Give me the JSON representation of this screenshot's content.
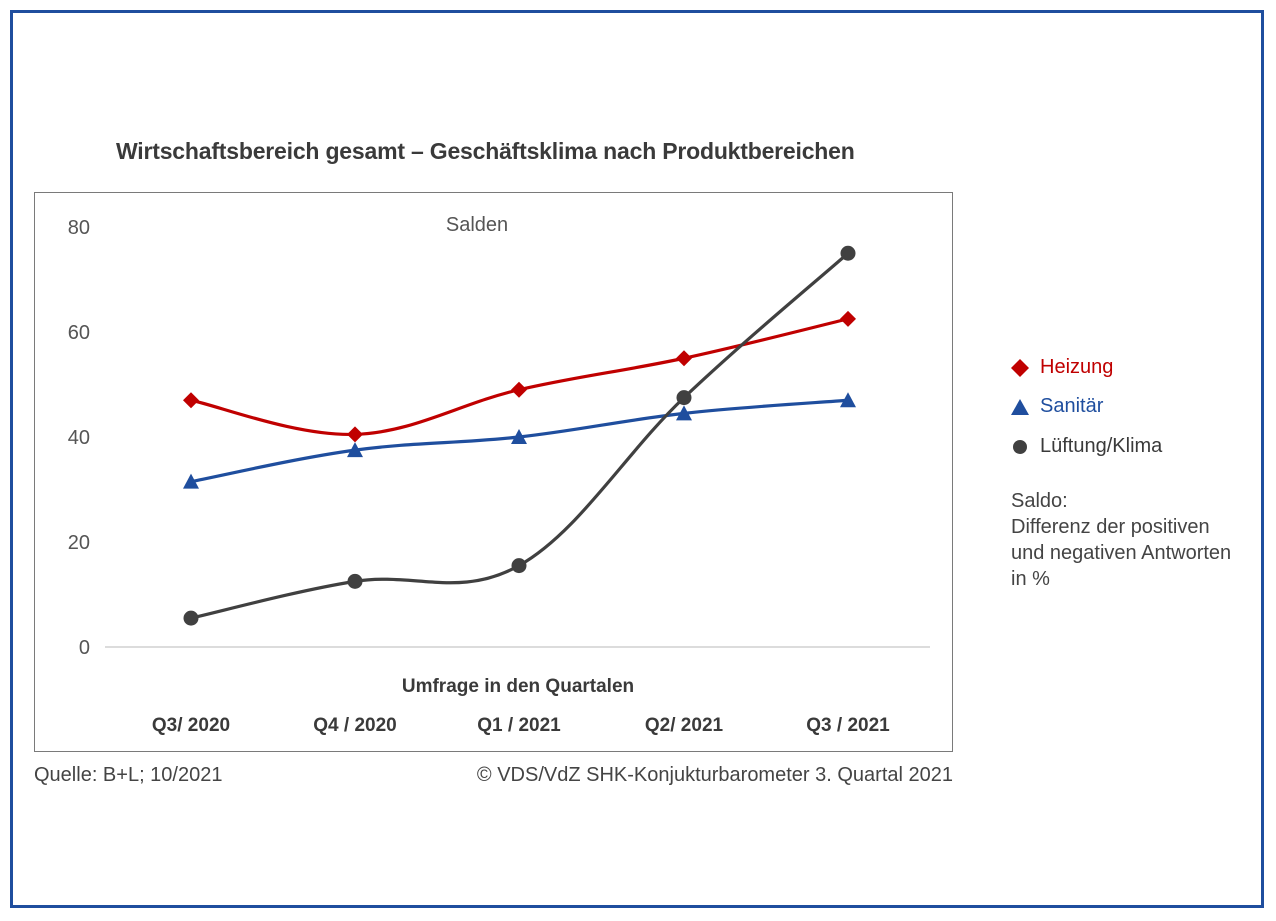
{
  "chart_data": {
    "type": "line",
    "title": "Wirtschaftsbereich gesamt – Geschäftsklima nach Produktbereichen",
    "subtitle": "Salden",
    "xlabel": "Umfrage in den Quartalen",
    "ylabel": "",
    "categories": [
      "Q3/ 2020",
      "Q4 / 2020",
      "Q1 / 2021",
      "Q2/ 2021",
      "Q3 / 2021"
    ],
    "ylim": [
      0,
      80
    ],
    "yticks": [
      "0",
      "20",
      "40",
      "60",
      "80"
    ],
    "grid": false,
    "legend_position": "right",
    "series": [
      {
        "name": "Heizung",
        "values": [
          47,
          40.5,
          49,
          55,
          62.5
        ],
        "color": "#c00000",
        "marker": "diamond"
      },
      {
        "name": "Sanitär",
        "values": [
          31.5,
          37.5,
          40,
          44.5,
          47
        ],
        "color": "#1f4e9e",
        "marker": "triangle"
      },
      {
        "name": "Lüftung/Klima",
        "values": [
          5.5,
          12.5,
          15.5,
          47.5,
          75
        ],
        "color": "#404040",
        "marker": "circle"
      }
    ]
  },
  "note": {
    "line1": "Saldo:",
    "line2": "Differenz der positiven",
    "line3": "und negativen Antworten",
    "line4": "in %"
  },
  "footer": {
    "source": "Quelle: B+L; 10/2021",
    "copyright": "© VDS/VdZ SHK-Konjukturbarometer 3. Quartal 2021"
  }
}
